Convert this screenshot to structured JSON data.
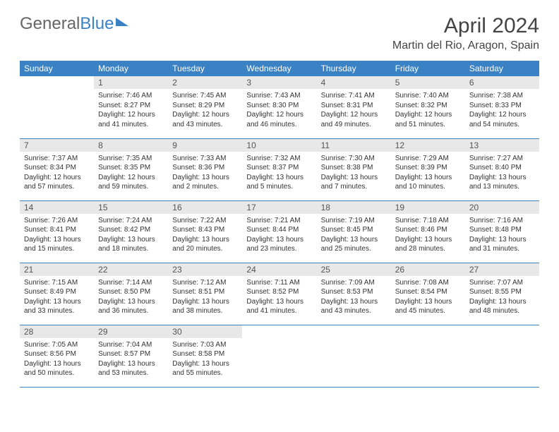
{
  "brand": {
    "part1": "General",
    "part2": "Blue"
  },
  "title": "April 2024",
  "location": "Martin del Rio, Aragon, Spain",
  "colors": {
    "accent": "#3b82c4",
    "header_bg": "#3b82c4",
    "daynum_bg": "#e8e8e8",
    "text": "#333333",
    "bg": "#ffffff"
  },
  "weekdays": [
    "Sunday",
    "Monday",
    "Tuesday",
    "Wednesday",
    "Thursday",
    "Friday",
    "Saturday"
  ],
  "weeks": [
    [
      {
        "n": "",
        "sr": "",
        "ss": "",
        "dl": ""
      },
      {
        "n": "1",
        "sr": "Sunrise: 7:46 AM",
        "ss": "Sunset: 8:27 PM",
        "dl": "Daylight: 12 hours and 41 minutes."
      },
      {
        "n": "2",
        "sr": "Sunrise: 7:45 AM",
        "ss": "Sunset: 8:29 PM",
        "dl": "Daylight: 12 hours and 43 minutes."
      },
      {
        "n": "3",
        "sr": "Sunrise: 7:43 AM",
        "ss": "Sunset: 8:30 PM",
        "dl": "Daylight: 12 hours and 46 minutes."
      },
      {
        "n": "4",
        "sr": "Sunrise: 7:41 AM",
        "ss": "Sunset: 8:31 PM",
        "dl": "Daylight: 12 hours and 49 minutes."
      },
      {
        "n": "5",
        "sr": "Sunrise: 7:40 AM",
        "ss": "Sunset: 8:32 PM",
        "dl": "Daylight: 12 hours and 51 minutes."
      },
      {
        "n": "6",
        "sr": "Sunrise: 7:38 AM",
        "ss": "Sunset: 8:33 PM",
        "dl": "Daylight: 12 hours and 54 minutes."
      }
    ],
    [
      {
        "n": "7",
        "sr": "Sunrise: 7:37 AM",
        "ss": "Sunset: 8:34 PM",
        "dl": "Daylight: 12 hours and 57 minutes."
      },
      {
        "n": "8",
        "sr": "Sunrise: 7:35 AM",
        "ss": "Sunset: 8:35 PM",
        "dl": "Daylight: 12 hours and 59 minutes."
      },
      {
        "n": "9",
        "sr": "Sunrise: 7:33 AM",
        "ss": "Sunset: 8:36 PM",
        "dl": "Daylight: 13 hours and 2 minutes."
      },
      {
        "n": "10",
        "sr": "Sunrise: 7:32 AM",
        "ss": "Sunset: 8:37 PM",
        "dl": "Daylight: 13 hours and 5 minutes."
      },
      {
        "n": "11",
        "sr": "Sunrise: 7:30 AM",
        "ss": "Sunset: 8:38 PM",
        "dl": "Daylight: 13 hours and 7 minutes."
      },
      {
        "n": "12",
        "sr": "Sunrise: 7:29 AM",
        "ss": "Sunset: 8:39 PM",
        "dl": "Daylight: 13 hours and 10 minutes."
      },
      {
        "n": "13",
        "sr": "Sunrise: 7:27 AM",
        "ss": "Sunset: 8:40 PM",
        "dl": "Daylight: 13 hours and 13 minutes."
      }
    ],
    [
      {
        "n": "14",
        "sr": "Sunrise: 7:26 AM",
        "ss": "Sunset: 8:41 PM",
        "dl": "Daylight: 13 hours and 15 minutes."
      },
      {
        "n": "15",
        "sr": "Sunrise: 7:24 AM",
        "ss": "Sunset: 8:42 PM",
        "dl": "Daylight: 13 hours and 18 minutes."
      },
      {
        "n": "16",
        "sr": "Sunrise: 7:22 AM",
        "ss": "Sunset: 8:43 PM",
        "dl": "Daylight: 13 hours and 20 minutes."
      },
      {
        "n": "17",
        "sr": "Sunrise: 7:21 AM",
        "ss": "Sunset: 8:44 PM",
        "dl": "Daylight: 13 hours and 23 minutes."
      },
      {
        "n": "18",
        "sr": "Sunrise: 7:19 AM",
        "ss": "Sunset: 8:45 PM",
        "dl": "Daylight: 13 hours and 25 minutes."
      },
      {
        "n": "19",
        "sr": "Sunrise: 7:18 AM",
        "ss": "Sunset: 8:46 PM",
        "dl": "Daylight: 13 hours and 28 minutes."
      },
      {
        "n": "20",
        "sr": "Sunrise: 7:16 AM",
        "ss": "Sunset: 8:48 PM",
        "dl": "Daylight: 13 hours and 31 minutes."
      }
    ],
    [
      {
        "n": "21",
        "sr": "Sunrise: 7:15 AM",
        "ss": "Sunset: 8:49 PM",
        "dl": "Daylight: 13 hours and 33 minutes."
      },
      {
        "n": "22",
        "sr": "Sunrise: 7:14 AM",
        "ss": "Sunset: 8:50 PM",
        "dl": "Daylight: 13 hours and 36 minutes."
      },
      {
        "n": "23",
        "sr": "Sunrise: 7:12 AM",
        "ss": "Sunset: 8:51 PM",
        "dl": "Daylight: 13 hours and 38 minutes."
      },
      {
        "n": "24",
        "sr": "Sunrise: 7:11 AM",
        "ss": "Sunset: 8:52 PM",
        "dl": "Daylight: 13 hours and 41 minutes."
      },
      {
        "n": "25",
        "sr": "Sunrise: 7:09 AM",
        "ss": "Sunset: 8:53 PM",
        "dl": "Daylight: 13 hours and 43 minutes."
      },
      {
        "n": "26",
        "sr": "Sunrise: 7:08 AM",
        "ss": "Sunset: 8:54 PM",
        "dl": "Daylight: 13 hours and 45 minutes."
      },
      {
        "n": "27",
        "sr": "Sunrise: 7:07 AM",
        "ss": "Sunset: 8:55 PM",
        "dl": "Daylight: 13 hours and 48 minutes."
      }
    ],
    [
      {
        "n": "28",
        "sr": "Sunrise: 7:05 AM",
        "ss": "Sunset: 8:56 PM",
        "dl": "Daylight: 13 hours and 50 minutes."
      },
      {
        "n": "29",
        "sr": "Sunrise: 7:04 AM",
        "ss": "Sunset: 8:57 PM",
        "dl": "Daylight: 13 hours and 53 minutes."
      },
      {
        "n": "30",
        "sr": "Sunrise: 7:03 AM",
        "ss": "Sunset: 8:58 PM",
        "dl": "Daylight: 13 hours and 55 minutes."
      },
      {
        "n": "",
        "sr": "",
        "ss": "",
        "dl": ""
      },
      {
        "n": "",
        "sr": "",
        "ss": "",
        "dl": ""
      },
      {
        "n": "",
        "sr": "",
        "ss": "",
        "dl": ""
      },
      {
        "n": "",
        "sr": "",
        "ss": "",
        "dl": ""
      }
    ]
  ]
}
